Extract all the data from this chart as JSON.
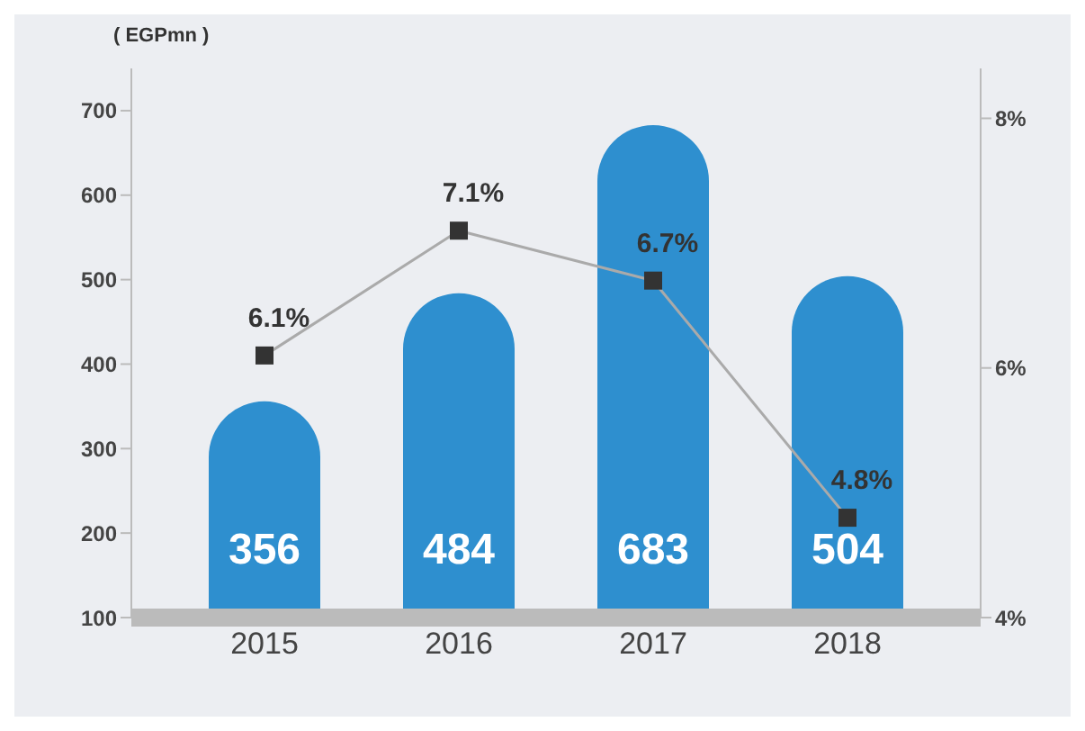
{
  "chart_data": {
    "type": "bar",
    "ylabel": "( EGPmn )",
    "categories": [
      "2015",
      "2016",
      "2017",
      "2018"
    ],
    "series": [
      {
        "color": "#2e8fcf",
        "values": [
          356,
          484,
          683,
          504
        ],
        "value_labels": [
          "356",
          "484",
          "683",
          "504"
        ]
      },
      {
        "type": "line",
        "axis": "y2",
        "color": "#333333",
        "values": [
          6.1,
          7.1,
          6.7,
          4.8
        ],
        "value_labels": [
          "6.1%",
          "7.1%",
          "6.7%",
          "4.8%"
        ],
        "marker": "square"
      }
    ],
    "ylim": [
      100,
      750
    ],
    "yticks": [
      100,
      200,
      300,
      400,
      500,
      600,
      700
    ],
    "y2lim": [
      4,
      8.4
    ],
    "y2ticks": [
      {
        "value": 4,
        "label": "4%"
      },
      {
        "value": 6,
        "label": "6%"
      },
      {
        "value": 8,
        "label": "8%"
      }
    ]
  }
}
